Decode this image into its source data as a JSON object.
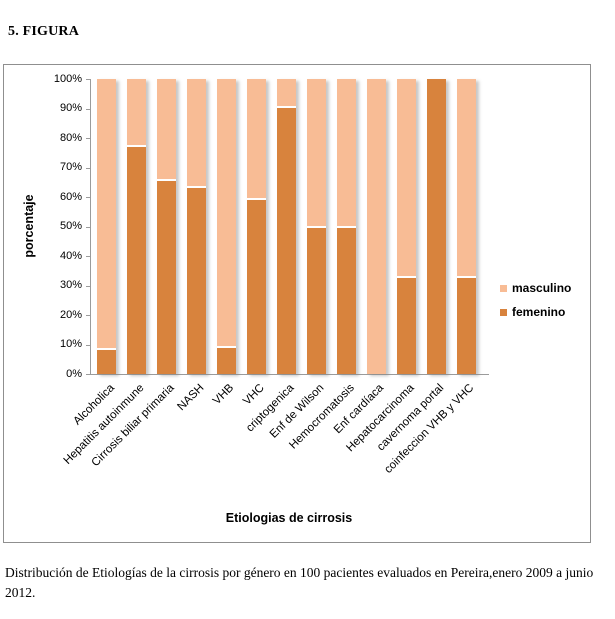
{
  "page": {
    "title": "5. FIGURA",
    "caption": "Distribución de Etiologías de la cirrosis por género en 100 pacientes evaluados en Pereira,enero 2009 a junio 2012."
  },
  "chart_data": {
    "type": "bar",
    "stacked": true,
    "stack_mode": "percent",
    "title": "",
    "xlabel": "Etiologias de cirrosis",
    "ylabel": "porcentaje",
    "ylim": [
      0,
      100
    ],
    "y_ticks": [
      "0%",
      "10%",
      "20%",
      "30%",
      "40%",
      "50%",
      "60%",
      "70%",
      "80%",
      "90%",
      "100%"
    ],
    "grid": false,
    "legend_position": "right",
    "categories": [
      "Alcoholica",
      "Hepatitis autoinmune",
      "Cirrosis biliar primaria",
      "NASH",
      "VHB",
      "VHC",
      "criptogenica",
      "Enf de Wilson",
      "Hemocromatosis",
      "Enf cardíaca",
      "Hepatocarcinoma",
      "cavernoma portal",
      "coinfeccion VHB y VHC"
    ],
    "series": [
      {
        "name": "femenino",
        "color": "#D8833D",
        "values": [
          8.7,
          77.5,
          66.0,
          63.6,
          9.5,
          59.6,
          90.9,
          50.0,
          50.0,
          0.0,
          33.3,
          100.0,
          33.3
        ]
      },
      {
        "name": "masculino",
        "color": "#F8BC95",
        "values": [
          91.3,
          22.5,
          34.0,
          36.4,
          90.5,
          40.4,
          9.1,
          50.0,
          50.0,
          100.0,
          66.7,
          0.0,
          66.7
        ]
      }
    ],
    "stack_order_bottom_to_top": [
      "femenino",
      "masculino"
    ],
    "legend": [
      {
        "label": "masculino",
        "color": "#F8BC95"
      },
      {
        "label": "femenino",
        "color": "#D8833D"
      }
    ]
  }
}
